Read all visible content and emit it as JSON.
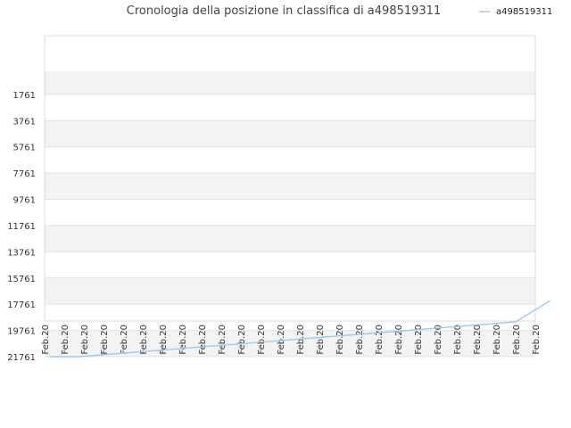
{
  "chart_data": {
    "type": "line",
    "title": "Cronologia della posizione in classifica di a498519311",
    "legend": {
      "position": "top-right",
      "entries": [
        "a498519311"
      ]
    },
    "y_reversed": true,
    "ylim": [
      21761,
      0
    ],
    "y_ticks": [
      1761,
      3761,
      5761,
      7761,
      9761,
      11761,
      13761,
      15761,
      17761,
      19761,
      21761
    ],
    "x_tick_labels": [
      "Feb.20",
      "Feb.20",
      "Feb.20",
      "Feb.20",
      "Feb.20",
      "Feb.20",
      "Feb.20",
      "Feb.20",
      "Feb.20",
      "Feb.20",
      "Feb.20",
      "Feb.20",
      "Feb.20",
      "Feb.20",
      "Feb.20",
      "Feb.20",
      "Feb.20",
      "Feb.20",
      "Feb.20",
      "Feb.20",
      "Feb.20",
      "Feb.20",
      "Feb.20",
      "Feb.20",
      "Feb.20",
      "Feb.20"
    ],
    "series": [
      {
        "name": "a498519311",
        "color": "#9ec9ee",
        "x": [
          0.25,
          1.75,
          24,
          25.75
        ],
        "values": [
          21761,
          21761,
          19100,
          17500
        ]
      }
    ],
    "grid": true,
    "band_colors": [
      "#f3f3f3",
      "#ffffff"
    ]
  }
}
